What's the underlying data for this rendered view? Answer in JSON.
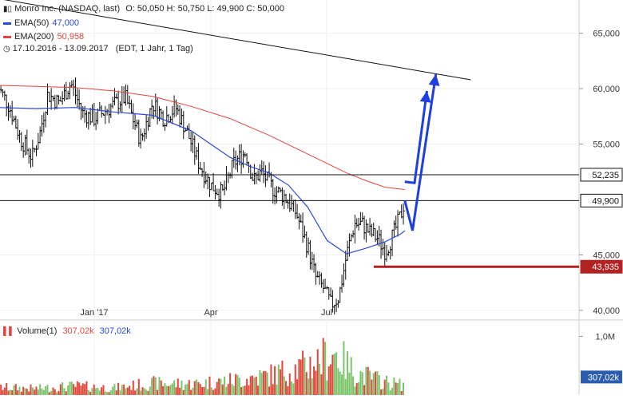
{
  "header": {
    "title": "Monro Inc. (NASDAQ, last)",
    "ohlc": "O: 50,050  H: 50,750  L: 49,900  C: 50,000",
    "period": "17.10.2016 - 13.09.2017",
    "info": "(EDT, 1 Jahr, 1 Tag)"
  },
  "legend": [
    {
      "label": "EMA(50)",
      "value": "47,000",
      "color": "#2a49d6"
    },
    {
      "label": "EMA(200)",
      "value": "50,958",
      "color": "#e2453a"
    }
  ],
  "volume_legend": {
    "label": "Volume(1)",
    "value_red": "307,02k",
    "value_blue": "307,02k"
  },
  "chart_data": {
    "type": "line",
    "subtype": "ohlc-bars",
    "x_tick_labels": [
      "Jan '17",
      "Apr",
      "Jul"
    ],
    "y_tick_labels": [
      "65,000",
      "60,000",
      "55,000",
      "45,000",
      "40,000"
    ],
    "y_ticks": [
      65,
      60,
      55,
      45,
      40
    ],
    "ylim": [
      39.2,
      68
    ],
    "volume_tick_label": "1,0M",
    "volume_ylim": [
      0,
      1250000
    ],
    "price_tags": [
      {
        "label": "52,235",
        "value": 52.235,
        "style": "outline"
      },
      {
        "label": "49,900",
        "value": 49.9,
        "style": "outline"
      },
      {
        "label": "43,935",
        "value": 43.935,
        "style": "red"
      }
    ],
    "volume_tag": {
      "label": "307,02k",
      "value": 307020
    },
    "horizontal_lines": [
      52.235,
      49.9
    ],
    "support_level": {
      "value": 43.935,
      "from_month": 9.7,
      "to_month": 12.2
    },
    "trendline": {
      "from": {
        "month": -0.6,
        "value": 68.5
      },
      "to": {
        "month": 12.2,
        "value": 60.8
      }
    },
    "forecast_arrows": [
      {
        "points": [
          [
            10.5,
            51.6
          ],
          [
            10.75,
            51.5
          ],
          [
            11.07,
            59.8
          ]
        ]
      },
      {
        "points": [
          [
            10.5,
            49.9
          ],
          [
            10.7,
            47.2
          ],
          [
            11.3,
            61.3
          ]
        ]
      }
    ],
    "x_month_range": [
      0,
      11.9
    ],
    "price_path": [
      [
        0,
        60.3
      ],
      [
        0.3,
        58.5
      ],
      [
        0.6,
        55.5
      ],
      [
        0.9,
        53.8
      ],
      [
        1.1,
        56.0
      ],
      [
        1.3,
        59.5
      ],
      [
        1.6,
        58.7
      ],
      [
        1.9,
        60.5
      ],
      [
        2.2,
        57.8
      ],
      [
        2.5,
        57.3
      ],
      [
        2.9,
        58.3
      ],
      [
        3.3,
        59.2
      ],
      [
        3.7,
        55.3
      ],
      [
        4.0,
        58.7
      ],
      [
        4.3,
        57.3
      ],
      [
        4.6,
        58.3
      ],
      [
        4.9,
        56.0
      ],
      [
        5.2,
        53.2
      ],
      [
        5.5,
        51.3
      ],
      [
        5.8,
        50.5
      ],
      [
        6.1,
        53.3
      ],
      [
        6.4,
        54.3
      ],
      [
        6.6,
        51.7
      ],
      [
        6.8,
        52.5
      ],
      [
        7.1,
        51.0
      ],
      [
        7.4,
        50.3
      ],
      [
        7.7,
        48.8
      ],
      [
        8.0,
        45.7
      ],
      [
        8.2,
        43.0
      ],
      [
        8.4,
        42.0
      ],
      [
        8.6,
        40.5
      ],
      [
        8.8,
        41.2
      ],
      [
        9.0,
        45.0
      ],
      [
        9.2,
        47.8
      ],
      [
        9.4,
        47.8
      ],
      [
        9.6,
        47.0
      ],
      [
        9.8,
        46.5
      ],
      [
        10.0,
        45.3
      ],
      [
        10.2,
        46.8
      ],
      [
        10.4,
        48.6
      ],
      [
        10.5,
        50.0
      ]
    ],
    "ema50_path": [
      [
        0,
        58.3
      ],
      [
        1,
        58.2
      ],
      [
        2,
        58.3
      ],
      [
        3,
        57.9
      ],
      [
        4,
        57.6
      ],
      [
        5,
        56.2
      ],
      [
        6,
        53.8
      ],
      [
        6.5,
        53.0
      ],
      [
        7,
        52.4
      ],
      [
        7.5,
        51.3
      ],
      [
        8,
        49.3
      ],
      [
        8.5,
        46.3
      ],
      [
        9,
        45.1
      ],
      [
        9.5,
        45.6
      ],
      [
        10,
        46.2
      ],
      [
        10.4,
        46.9
      ],
      [
        10.5,
        47.2
      ]
    ],
    "ema200_path": [
      [
        0,
        60.3
      ],
      [
        1,
        60.2
      ],
      [
        2,
        60.1
      ],
      [
        3,
        59.8
      ],
      [
        4,
        59.3
      ],
      [
        5,
        58.4
      ],
      [
        6,
        57.3
      ],
      [
        7,
        55.8
      ],
      [
        8,
        54.1
      ],
      [
        9,
        52.4
      ],
      [
        9.5,
        51.7
      ],
      [
        10,
        51.1
      ],
      [
        10.5,
        50.9
      ]
    ],
    "volume_profile": [
      [
        0,
        120000
      ],
      [
        1,
        100000
      ],
      [
        2,
        140000
      ],
      [
        3,
        110000
      ],
      [
        4,
        180000
      ],
      [
        5,
        170000
      ],
      [
        6,
        220000
      ],
      [
        7,
        300000
      ],
      [
        8,
        450000
      ],
      [
        8.7,
        650000
      ],
      [
        9.2,
        350000
      ],
      [
        10,
        200000
      ],
      [
        10.5,
        150000
      ]
    ]
  }
}
